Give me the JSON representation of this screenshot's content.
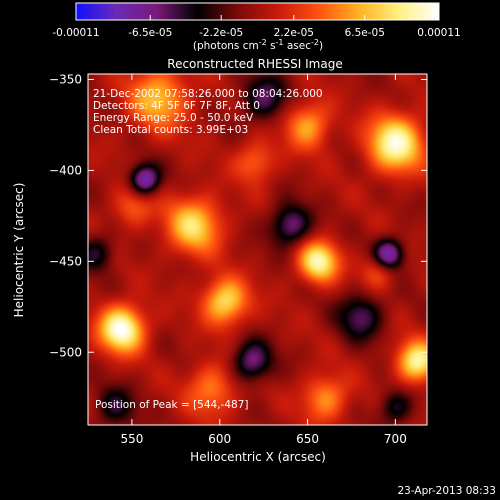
{
  "colorbar": {
    "ticks": [
      "-0.00011",
      "-6.5e-05",
      "-2.2e-05",
      "2.2e-05",
      "6.5e-05",
      "0.00011"
    ],
    "tick_values": [
      -0.00011,
      -6.5e-05,
      -2.2e-05,
      2.2e-05,
      6.5e-05,
      0.00011
    ],
    "range": [
      -0.00011,
      0.00011
    ],
    "units_base": "(photons cm",
    "units_sup1": "-2",
    "units_mid": " s",
    "units_sup2": "-1",
    "units_end": " asec",
    "units_sup3": "-2",
    "units_close": ")",
    "colors": [
      "#1010ff",
      "#6a2ab8",
      "#7a1a7a",
      "#000000",
      "#7a0a0a",
      "#c81a0a",
      "#ff5010",
      "#ffb020",
      "#fff080",
      "#ffffff"
    ]
  },
  "chart_data": {
    "type": "heatmap",
    "title": "Reconstructed RHESSI Image",
    "xlabel": "Heliocentric X (arcsec)",
    "ylabel": "Heliocentric Y (arcsec)",
    "xlim": [
      525,
      718
    ],
    "ylim": [
      -540,
      -347
    ],
    "xticks": [
      550,
      600,
      650,
      700
    ],
    "yticks": [
      -350,
      -400,
      -450,
      -500
    ],
    "xtick_labels": [
      "550",
      "600",
      "650",
      "700"
    ],
    "ytick_labels": [
      "−350",
      "−400",
      "−450",
      "−500"
    ],
    "annotations": [
      "21-Dec-2002 07:58:26.000 to 08:04:26.000",
      "Detectors: 4F 5F 6F 7F 8F, Att 0",
      "Energy Range: 25.0 - 50.0 keV",
      "Clean     Total counts: 3.99E+03"
    ],
    "peak_label": "Position of Peak = [544,-487]",
    "peak": [
      544,
      -487
    ],
    "blobs": [
      {
        "x": 544,
        "y": -487,
        "v": 1.0,
        "s": 9
      },
      {
        "x": 700,
        "y": -385,
        "v": 0.9,
        "s": 11
      },
      {
        "x": 712,
        "y": -505,
        "v": 0.85,
        "s": 8
      },
      {
        "x": 656,
        "y": -450,
        "v": 0.85,
        "s": 8
      },
      {
        "x": 603,
        "y": -472,
        "v": 0.75,
        "s": 9
      },
      {
        "x": 585,
        "y": -430,
        "v": 0.7,
        "s": 11
      },
      {
        "x": 565,
        "y": -360,
        "v": 0.6,
        "s": 12
      },
      {
        "x": 650,
        "y": -375,
        "v": 0.55,
        "s": 9
      },
      {
        "x": 620,
        "y": -395,
        "v": 0.4,
        "s": 8
      },
      {
        "x": 595,
        "y": -520,
        "v": 0.45,
        "s": 10
      },
      {
        "x": 660,
        "y": -525,
        "v": 0.5,
        "s": 9
      },
      {
        "x": 690,
        "y": -455,
        "v": 0.35,
        "s": 7
      },
      {
        "x": 550,
        "y": -420,
        "v": 0.35,
        "s": 8
      },
      {
        "x": 557,
        "y": -405,
        "v": -0.8,
        "s": 6
      },
      {
        "x": 640,
        "y": -430,
        "v": -0.6,
        "s": 8
      },
      {
        "x": 696,
        "y": -446,
        "v": -0.8,
        "s": 6
      },
      {
        "x": 618,
        "y": -505,
        "v": -0.6,
        "s": 8
      },
      {
        "x": 680,
        "y": -480,
        "v": -0.5,
        "s": 9
      },
      {
        "x": 540,
        "y": -530,
        "v": -0.4,
        "s": 8
      },
      {
        "x": 625,
        "y": -360,
        "v": -0.5,
        "s": 9
      },
      {
        "x": 700,
        "y": -530,
        "v": -0.4,
        "s": 7
      },
      {
        "x": 530,
        "y": -445,
        "v": -0.4,
        "s": 7
      }
    ]
  },
  "footer": {
    "timestamp": "23-Apr-2013 08:33"
  }
}
